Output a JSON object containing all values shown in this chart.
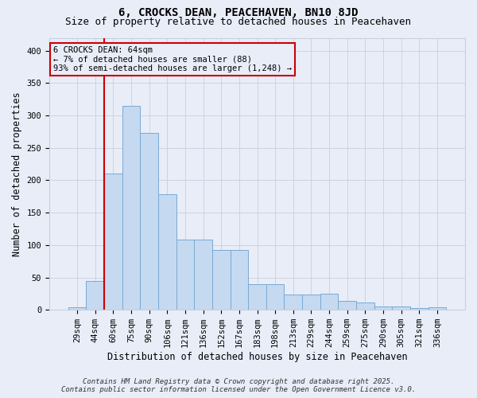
{
  "title": "6, CROCKS DEAN, PEACEHAVEN, BN10 8JD",
  "subtitle": "Size of property relative to detached houses in Peacehaven",
  "xlabel": "Distribution of detached houses by size in Peacehaven",
  "ylabel": "Number of detached properties",
  "categories": [
    "29sqm",
    "44sqm",
    "60sqm",
    "75sqm",
    "90sqm",
    "106sqm",
    "121sqm",
    "136sqm",
    "152sqm",
    "167sqm",
    "183sqm",
    "198sqm",
    "213sqm",
    "229sqm",
    "244sqm",
    "259sqm",
    "275sqm",
    "290sqm",
    "305sqm",
    "321sqm",
    "336sqm"
  ],
  "values": [
    4,
    44,
    211,
    315,
    273,
    178,
    108,
    108,
    92,
    92,
    39,
    39,
    24,
    24,
    25,
    14,
    11,
    5,
    5,
    3,
    4
  ],
  "bar_color": "#c5d9f0",
  "bar_edge_color": "#7aaad4",
  "bg_color": "#e8edf8",
  "grid_color": "#c8cfdf",
  "red_line_index": 2,
  "annotation_text": "6 CROCKS DEAN: 64sqm\n← 7% of detached houses are smaller (88)\n93% of semi-detached houses are larger (1,248) →",
  "annotation_box_facecolor": "#e8edf8",
  "annotation_box_edgecolor": "#cc0000",
  "ylim": [
    0,
    420
  ],
  "yticks": [
    0,
    50,
    100,
    150,
    200,
    250,
    300,
    350,
    400
  ],
  "footer_line1": "Contains HM Land Registry data © Crown copyright and database right 2025.",
  "footer_line2": "Contains public sector information licensed under the Open Government Licence v3.0.",
  "title_fontsize": 10,
  "subtitle_fontsize": 9,
  "tick_fontsize": 7.5,
  "label_fontsize": 8.5,
  "annotation_fontsize": 7.5,
  "footer_fontsize": 6.5
}
